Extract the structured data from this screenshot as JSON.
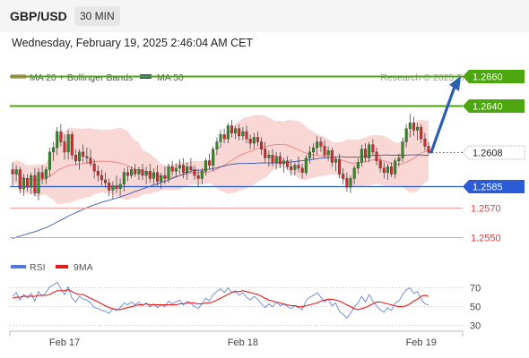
{
  "header": {
    "symbol": "GBP/USD",
    "timeframe": "30 MIN"
  },
  "datetime": "Wednesday, February 19, 2025 2:46:04 AM CET",
  "legend": {
    "ma20_label": "MA 20 + Bollinger Bands",
    "ma50_label": "MA 50",
    "rsi_label": "RSI",
    "ma9_label": "9MA",
    "credit": "Research © 2025 Trading Central"
  },
  "colors": {
    "resistance": "#4ca60d",
    "support": "#2c5bd6",
    "lower": "#e23b3b",
    "bullish": "#2e8f22",
    "bearish": "#d92a2a",
    "band_fill": "#f7c9c7",
    "ma50": "#3a5aa8",
    "rsi": "#5577dd",
    "rsi_ma": "#e41b1b"
  },
  "chart_data": [
    {
      "type": "candlestick",
      "levels": [
        {
          "value": 1.266,
          "label": "1.2660",
          "kind": "resistance"
        },
        {
          "value": 1.264,
          "label": "1.2640",
          "kind": "resistance"
        },
        {
          "value": 1.2608,
          "label": "1.2608",
          "kind": "current"
        },
        {
          "value": 1.2585,
          "label": "1.2585",
          "kind": "support"
        },
        {
          "value": 1.257,
          "label": "1.2570",
          "kind": "lower"
        },
        {
          "value": 1.255,
          "label": "1.2550",
          "kind": "lower"
        }
      ],
      "ylim": [
        1.2534,
        1.2666
      ],
      "xlabels": [
        "Feb 17",
        "Feb 18",
        "Feb 19"
      ],
      "xlabel_index": [
        14,
        62,
        110
      ],
      "projection": {
        "from": 1.2608,
        "to": 1.266
      },
      "ohlc": [
        [
          1.2596,
          1.2601,
          1.2585,
          1.2593
        ],
        [
          1.2593,
          1.2599,
          1.2588,
          1.2596
        ],
        [
          1.2596,
          1.2598,
          1.258,
          1.2583
        ],
        [
          1.2583,
          1.2593,
          1.2578,
          1.259
        ],
        [
          1.259,
          1.2593,
          1.2581,
          1.2584
        ],
        [
          1.2584,
          1.2594,
          1.2579,
          1.2592
        ],
        [
          1.2592,
          1.2597,
          1.2578,
          1.258
        ],
        [
          1.258,
          1.2597,
          1.2575,
          1.2594
        ],
        [
          1.2594,
          1.2599,
          1.2586,
          1.259
        ],
        [
          1.259,
          1.2598,
          1.2586,
          1.2596
        ],
        [
          1.2596,
          1.2611,
          1.2591,
          1.2608
        ],
        [
          1.2608,
          1.2615,
          1.2602,
          1.2611
        ],
        [
          1.2611,
          1.2625,
          1.2606,
          1.2622
        ],
        [
          1.2622,
          1.2627,
          1.2612,
          1.2615
        ],
        [
          1.2615,
          1.262,
          1.2603,
          1.2608
        ],
        [
          1.2608,
          1.2623,
          1.2603,
          1.262
        ],
        [
          1.262,
          1.2622,
          1.2603,
          1.2606
        ],
        [
          1.2606,
          1.261,
          1.2599,
          1.2602
        ],
        [
          1.2602,
          1.261,
          1.2596,
          1.2608
        ],
        [
          1.2608,
          1.2613,
          1.2601,
          1.2605
        ],
        [
          1.2605,
          1.2611,
          1.26,
          1.2604
        ],
        [
          1.2604,
          1.261,
          1.2598,
          1.26
        ],
        [
          1.26,
          1.2603,
          1.259,
          1.2595
        ],
        [
          1.2595,
          1.2599,
          1.2588,
          1.2592
        ],
        [
          1.2592,
          1.2596,
          1.2585,
          1.2589
        ],
        [
          1.2589,
          1.2594,
          1.2584,
          1.2587
        ],
        [
          1.2587,
          1.259,
          1.2578,
          1.2582
        ],
        [
          1.2582,
          1.2588,
          1.2576,
          1.2585
        ],
        [
          1.2585,
          1.2592,
          1.258,
          1.2583
        ],
        [
          1.2583,
          1.259,
          1.2578,
          1.2586
        ],
        [
          1.2586,
          1.2597,
          1.2581,
          1.2594
        ],
        [
          1.2594,
          1.2598,
          1.2588,
          1.2592
        ],
        [
          1.2592,
          1.2598,
          1.259,
          1.2596
        ],
        [
          1.2596,
          1.26,
          1.2591,
          1.2593
        ],
        [
          1.2593,
          1.2598,
          1.2589,
          1.2596
        ],
        [
          1.2596,
          1.26,
          1.2589,
          1.2592
        ],
        [
          1.2592,
          1.2598,
          1.2586,
          1.2595
        ],
        [
          1.2595,
          1.26,
          1.2587,
          1.259
        ],
        [
          1.259,
          1.2597,
          1.2586,
          1.2594
        ],
        [
          1.2594,
          1.2599,
          1.2585,
          1.2588
        ],
        [
          1.2588,
          1.2594,
          1.2583,
          1.2592
        ],
        [
          1.2592,
          1.2598,
          1.2586,
          1.259
        ],
        [
          1.259,
          1.26,
          1.2587,
          1.2598
        ],
        [
          1.2598,
          1.2602,
          1.2592,
          1.2595
        ],
        [
          1.2595,
          1.26,
          1.2591,
          1.2597
        ],
        [
          1.2597,
          1.2603,
          1.2593,
          1.2599
        ],
        [
          1.2599,
          1.2604,
          1.259,
          1.2594
        ],
        [
          1.2594,
          1.2601,
          1.2589,
          1.2598
        ],
        [
          1.2598,
          1.2604,
          1.2594,
          1.2596
        ],
        [
          1.2596,
          1.2599,
          1.2589,
          1.2592
        ],
        [
          1.2592,
          1.2596,
          1.2584,
          1.259
        ],
        [
          1.259,
          1.2597,
          1.2586,
          1.2595
        ],
        [
          1.2595,
          1.2604,
          1.2592,
          1.2602
        ],
        [
          1.2602,
          1.2607,
          1.2596,
          1.2599
        ],
        [
          1.2599,
          1.2612,
          1.2595,
          1.261
        ],
        [
          1.261,
          1.2618,
          1.2606,
          1.2615
        ],
        [
          1.2615,
          1.2623,
          1.2611,
          1.262
        ],
        [
          1.262,
          1.2624,
          1.2614,
          1.2617
        ],
        [
          1.2617,
          1.2628,
          1.2614,
          1.2626
        ],
        [
          1.2626,
          1.263,
          1.2618,
          1.2621
        ],
        [
          1.2621,
          1.2626,
          1.2617,
          1.2624
        ],
        [
          1.2624,
          1.2627,
          1.2616,
          1.2619
        ],
        [
          1.2619,
          1.2625,
          1.2616,
          1.2622
        ],
        [
          1.2622,
          1.2626,
          1.2614,
          1.2617
        ],
        [
          1.2617,
          1.262,
          1.261,
          1.2614
        ],
        [
          1.2614,
          1.2621,
          1.261,
          1.2618
        ],
        [
          1.2618,
          1.2622,
          1.2612,
          1.2615
        ],
        [
          1.2615,
          1.2618,
          1.2606,
          1.261
        ],
        [
          1.261,
          1.2615,
          1.2601,
          1.2604
        ],
        [
          1.2604,
          1.2609,
          1.2598,
          1.2606
        ],
        [
          1.2606,
          1.261,
          1.2598,
          1.2601
        ],
        [
          1.2601,
          1.2608,
          1.2596,
          1.2605
        ],
        [
          1.2605,
          1.2608,
          1.2597,
          1.26
        ],
        [
          1.26,
          1.2604,
          1.2594,
          1.2602
        ],
        [
          1.2602,
          1.2605,
          1.2596,
          1.2598
        ],
        [
          1.2598,
          1.2603,
          1.2592,
          1.2596
        ],
        [
          1.2596,
          1.2601,
          1.2592,
          1.2599
        ],
        [
          1.2599,
          1.2605,
          1.2594,
          1.2597
        ],
        [
          1.2597,
          1.26,
          1.259,
          1.2594
        ],
        [
          1.2594,
          1.2606,
          1.2592,
          1.2604
        ],
        [
          1.2604,
          1.2612,
          1.26,
          1.2608
        ],
        [
          1.2608,
          1.2614,
          1.2603,
          1.2611
        ],
        [
          1.2611,
          1.2619,
          1.2606,
          1.2615
        ],
        [
          1.2615,
          1.2618,
          1.2608,
          1.2612
        ],
        [
          1.2612,
          1.2616,
          1.2604,
          1.2606
        ],
        [
          1.2606,
          1.2612,
          1.2602,
          1.2609
        ],
        [
          1.2609,
          1.2611,
          1.2598,
          1.2601
        ],
        [
          1.2601,
          1.2605,
          1.2595,
          1.2603
        ],
        [
          1.2603,
          1.2607,
          1.259,
          1.2593
        ],
        [
          1.2593,
          1.2597,
          1.2586,
          1.259
        ],
        [
          1.259,
          1.2594,
          1.2581,
          1.2584
        ],
        [
          1.2584,
          1.2592,
          1.258,
          1.259
        ],
        [
          1.259,
          1.2599,
          1.2586,
          1.2597
        ],
        [
          1.2597,
          1.2604,
          1.2593,
          1.2601
        ],
        [
          1.2601,
          1.2613,
          1.2598,
          1.261
        ],
        [
          1.261,
          1.2614,
          1.2601,
          1.2604
        ],
        [
          1.2604,
          1.2615,
          1.2601,
          1.2613
        ],
        [
          1.2613,
          1.2617,
          1.2606,
          1.2608
        ],
        [
          1.2608,
          1.2611,
          1.2599,
          1.2602
        ],
        [
          1.2602,
          1.2605,
          1.2594,
          1.2597
        ],
        [
          1.2597,
          1.2601,
          1.259,
          1.2594
        ],
        [
          1.2594,
          1.26,
          1.2589,
          1.2598
        ],
        [
          1.2598,
          1.2601,
          1.2591,
          1.2593
        ],
        [
          1.2593,
          1.2604,
          1.259,
          1.2602
        ],
        [
          1.2602,
          1.2607,
          1.2598,
          1.2604
        ],
        [
          1.2604,
          1.2618,
          1.2601,
          1.2615
        ],
        [
          1.2615,
          1.2627,
          1.2611,
          1.2624
        ],
        [
          1.2624,
          1.2634,
          1.2618,
          1.2628
        ],
        [
          1.2628,
          1.2632,
          1.2619,
          1.2623
        ],
        [
          1.2623,
          1.2628,
          1.2616,
          1.2625
        ],
        [
          1.2625,
          1.2627,
          1.2614,
          1.2617
        ],
        [
          1.2617,
          1.2621,
          1.2609,
          1.2612
        ],
        [
          1.2612,
          1.2615,
          1.2606,
          1.2608
        ]
      ]
    },
    {
      "type": "line",
      "title": "RSI",
      "yticks": [
        30,
        50,
        70
      ],
      "ylim": [
        25,
        80
      ],
      "series": [
        {
          "name": "RSI",
          "values": [
            60,
            64,
            56,
            62,
            58,
            63,
            55,
            65,
            60,
            64,
            70,
            72,
            75,
            68,
            62,
            70,
            58,
            54,
            60,
            57,
            56,
            53,
            48,
            47,
            45,
            44,
            42,
            47,
            45,
            48,
            53,
            51,
            54,
            51,
            54,
            50,
            53,
            49,
            52,
            48,
            51,
            49,
            55,
            52,
            54,
            56,
            51,
            55,
            53,
            49,
            47,
            52,
            58,
            55,
            62,
            65,
            68,
            64,
            69,
            64,
            66,
            61,
            64,
            59,
            56,
            60,
            57,
            52,
            48,
            52,
            49,
            54,
            50,
            52,
            49,
            47,
            50,
            48,
            46,
            55,
            59,
            61,
            64,
            59,
            54,
            57,
            50,
            53,
            44,
            41,
            37,
            42,
            49,
            53,
            60,
            54,
            62,
            55,
            50,
            46,
            43,
            48,
            45,
            53,
            55,
            62,
            67,
            69,
            63,
            65,
            57,
            52,
            51
          ]
        },
        {
          "name": "9MA",
          "values": [
            58,
            59,
            59,
            60,
            60,
            60,
            60,
            61,
            61,
            61,
            62,
            64,
            66,
            66,
            66,
            67,
            65,
            63,
            62,
            62,
            60,
            58,
            56,
            54,
            52,
            50,
            48,
            47,
            46,
            46,
            47,
            48,
            49,
            50,
            51,
            51,
            52,
            51,
            51,
            51,
            51,
            51,
            51,
            51,
            51,
            52,
            52,
            53,
            53,
            53,
            52,
            52,
            53,
            53,
            54,
            56,
            58,
            60,
            62,
            64,
            65,
            65,
            66,
            65,
            64,
            63,
            62,
            60,
            58,
            56,
            55,
            54,
            53,
            52,
            51,
            50,
            50,
            49,
            49,
            50,
            51,
            52,
            53,
            55,
            56,
            57,
            57,
            56,
            55,
            53,
            51,
            49,
            47,
            46,
            47,
            48,
            50,
            52,
            54,
            54,
            53,
            52,
            51,
            50,
            49,
            49,
            50,
            52,
            55,
            57,
            60,
            61,
            60
          ]
        }
      ]
    }
  ]
}
